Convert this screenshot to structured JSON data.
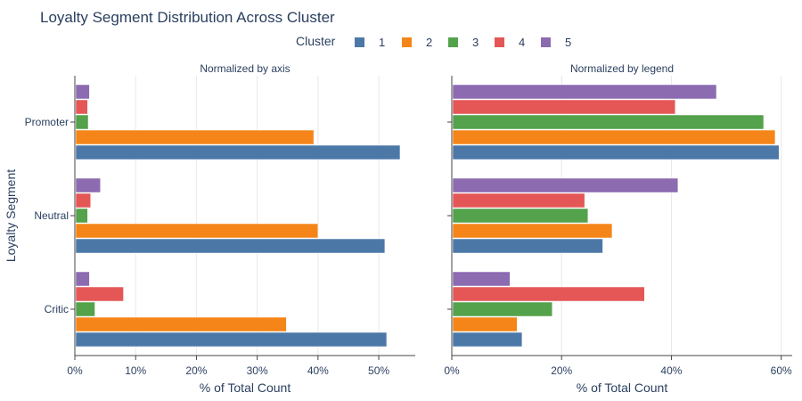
{
  "title": "Loyalty Segment Distribution Across Cluster",
  "legend": {
    "title": "Cluster",
    "items": [
      {
        "name": "1",
        "color": "#4c78a8"
      },
      {
        "name": "2",
        "color": "#f58518"
      },
      {
        "name": "3",
        "color": "#54a24b"
      },
      {
        "name": "4",
        "color": "#e45756"
      },
      {
        "name": "5",
        "color": "#8c6bb1"
      }
    ]
  },
  "chart_data": [
    {
      "type": "bar",
      "orientation": "horizontal",
      "title": "Normalized by axis",
      "xlabel": "% of Total Count",
      "ylabel": "Loyalty Segment",
      "xlim": [
        0,
        56
      ],
      "xticks": [
        0,
        10,
        20,
        30,
        40,
        50
      ],
      "xtick_labels": [
        "0%",
        "10%",
        "20%",
        "30%",
        "40%",
        "50%"
      ],
      "categories": [
        "Promoter",
        "Neutral",
        "Critic"
      ],
      "series": [
        {
          "name": "1",
          "values": [
            53.5,
            51.0,
            51.3
          ]
        },
        {
          "name": "2",
          "values": [
            39.3,
            40.0,
            34.8
          ]
        },
        {
          "name": "3",
          "values": [
            2.2,
            2.1,
            3.3
          ]
        },
        {
          "name": "4",
          "values": [
            2.1,
            2.6,
            8.0
          ]
        },
        {
          "name": "5",
          "values": [
            2.4,
            4.2,
            2.4
          ]
        }
      ]
    },
    {
      "type": "bar",
      "orientation": "horizontal",
      "title": "Normalized by legend",
      "xlabel": "% of Total Count",
      "xlim": [
        0,
        62
      ],
      "xticks": [
        0,
        20,
        40,
        60
      ],
      "xtick_labels": [
        "0%",
        "20%",
        "40%",
        "60%"
      ],
      "categories": [
        "Promoter",
        "Neutral",
        "Critic"
      ],
      "series": [
        {
          "name": "1",
          "values": [
            59.6,
            27.5,
            12.8
          ]
        },
        {
          "name": "2",
          "values": [
            58.9,
            29.2,
            11.9
          ]
        },
        {
          "name": "3",
          "values": [
            56.8,
            24.8,
            18.3
          ]
        },
        {
          "name": "4",
          "values": [
            40.7,
            24.2,
            35.1
          ]
        },
        {
          "name": "5",
          "values": [
            48.2,
            41.2,
            10.6
          ]
        }
      ]
    }
  ]
}
